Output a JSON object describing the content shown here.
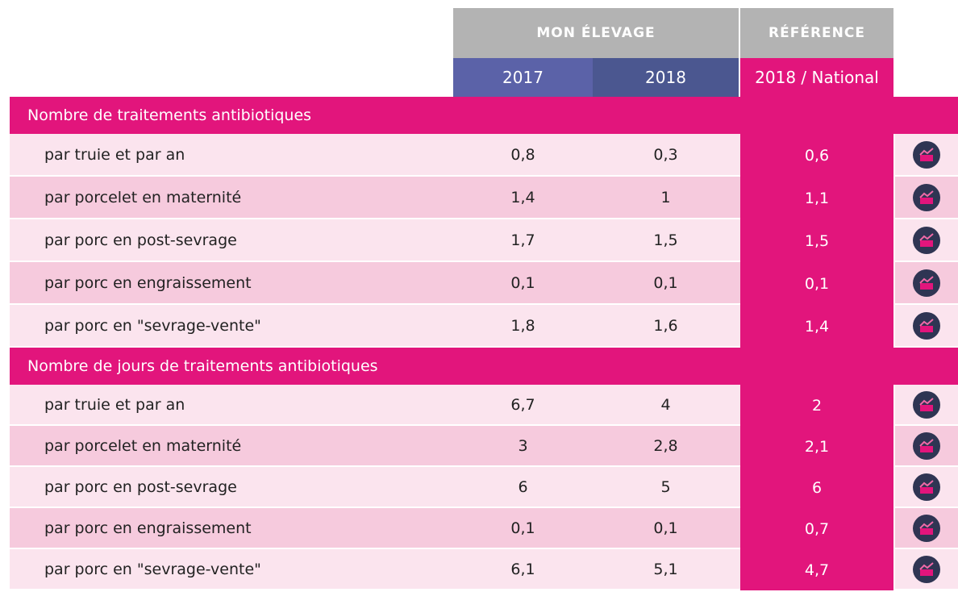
{
  "header": {
    "group_1": "MON ÉLEVAGE",
    "group_2": "RÉFÉRENCE",
    "columns": [
      "2017",
      "2018",
      "2018 / National"
    ]
  },
  "sections": [
    {
      "title": "Nombre de traitements antibiotiques",
      "rows": [
        [
          "par truie et par an",
          "0,8",
          "0,3",
          "0,6"
        ],
        [
          "par porcelet en maternité",
          "1,4",
          "1",
          "1,1"
        ],
        [
          "par porc en post-sevrage",
          "1,7",
          "1,5",
          "1,5"
        ],
        [
          "par porc en engraissement",
          "0,1",
          "0,1",
          "0,1"
        ],
        [
          "par porc en \"sevrage-vente\"",
          "1,8",
          "1,6",
          "1,4"
        ]
      ]
    },
    {
      "title": "Nombre de jours de traitements antibiotiques",
      "rows": [
        [
          "par truie et par an",
          "6,7",
          "4",
          "2"
        ],
        [
          "par porcelet en maternité",
          "3",
          "2,8",
          "2,1"
        ],
        [
          "par porc en post-sevrage",
          "6",
          "5",
          "6"
        ],
        [
          "par porc en engraissement",
          "0,1",
          "0,1",
          "0,7"
        ],
        [
          "par porc en \"sevrage-vente\"",
          "6,1",
          "5,1",
          "4,7"
        ]
      ]
    }
  ]
}
